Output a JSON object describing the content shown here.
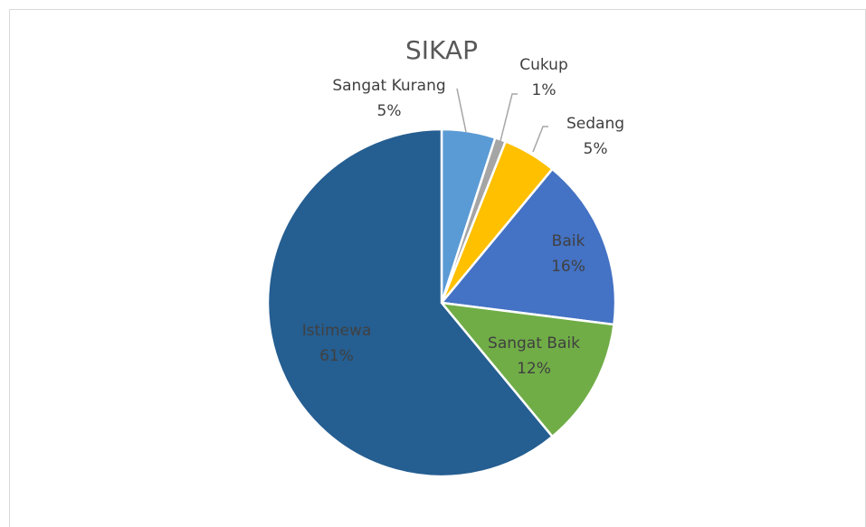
{
  "chart_data": {
    "type": "pie",
    "title": "SIKAP",
    "categories": [
      "Sangat Kurang",
      "Cukup",
      "Sedang",
      "Baik",
      "Sangat Baik",
      "Istimewa"
    ],
    "values": [
      5,
      1,
      5,
      16,
      12,
      61
    ],
    "value_labels": [
      "5%",
      "1%",
      "5%",
      "16%",
      "12%",
      "61%"
    ],
    "colors": [
      "#5b9bd5",
      "#a5a5a5",
      "#ffc000",
      "#4472c4",
      "#70ad47",
      "#255e91"
    ]
  }
}
